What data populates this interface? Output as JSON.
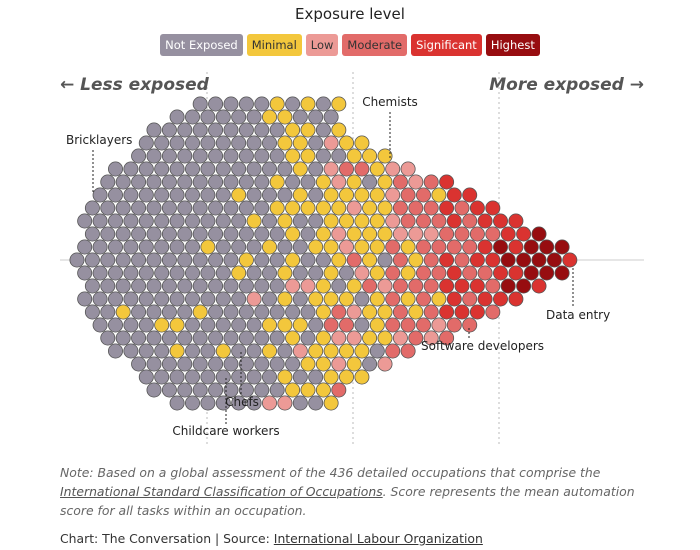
{
  "legend": {
    "title": "Exposure level",
    "items": [
      {
        "label": "Not Exposed",
        "color": "#9690a0",
        "text_color": "#ffffff"
      },
      {
        "label": "Minimal",
        "color": "#f3c73c",
        "text_color": "#333333"
      },
      {
        "label": "Low",
        "color": "#ec9a96",
        "text_color": "#333333"
      },
      {
        "label": "Moderate",
        "color": "#e26b69",
        "text_color": "#333333"
      },
      {
        "label": "Significant",
        "color": "#da3330",
        "text_color": "#ffffff"
      },
      {
        "label": "Highest",
        "color": "#970d10",
        "text_color": "#ffffff"
      }
    ]
  },
  "axis": {
    "left_label": "← Less exposed",
    "right_label": "More exposed →"
  },
  "chart_data": {
    "type": "scatter",
    "subtype": "beeswarm",
    "x_axis": "mean automation score (less exposed to more exposed)",
    "total_occupations": 436,
    "category_counts": {
      "Not Exposed": 280,
      "Minimal": 86,
      "Low": 14,
      "Moderate": 20,
      "Significant": 24,
      "Highest": 12
    },
    "grid": "three vertical dashed reference lines, one horizontal center line",
    "annotations": [
      "Bricklayers",
      "Chemists",
      "Data entry",
      "Software developers",
      "Chefs",
      "Childcare workers"
    ]
  },
  "note": {
    "prefix": "Note: Based on a global assessment of the 436 detailed occupations that comprise the ",
    "link": "International Standard Classification of Occupations",
    "suffix": ". Score represents the mean automation score for all tasks within an occupation."
  },
  "credit": {
    "prefix": "Chart: The Conversation | Source: ",
    "link": "International Labour Organization"
  }
}
